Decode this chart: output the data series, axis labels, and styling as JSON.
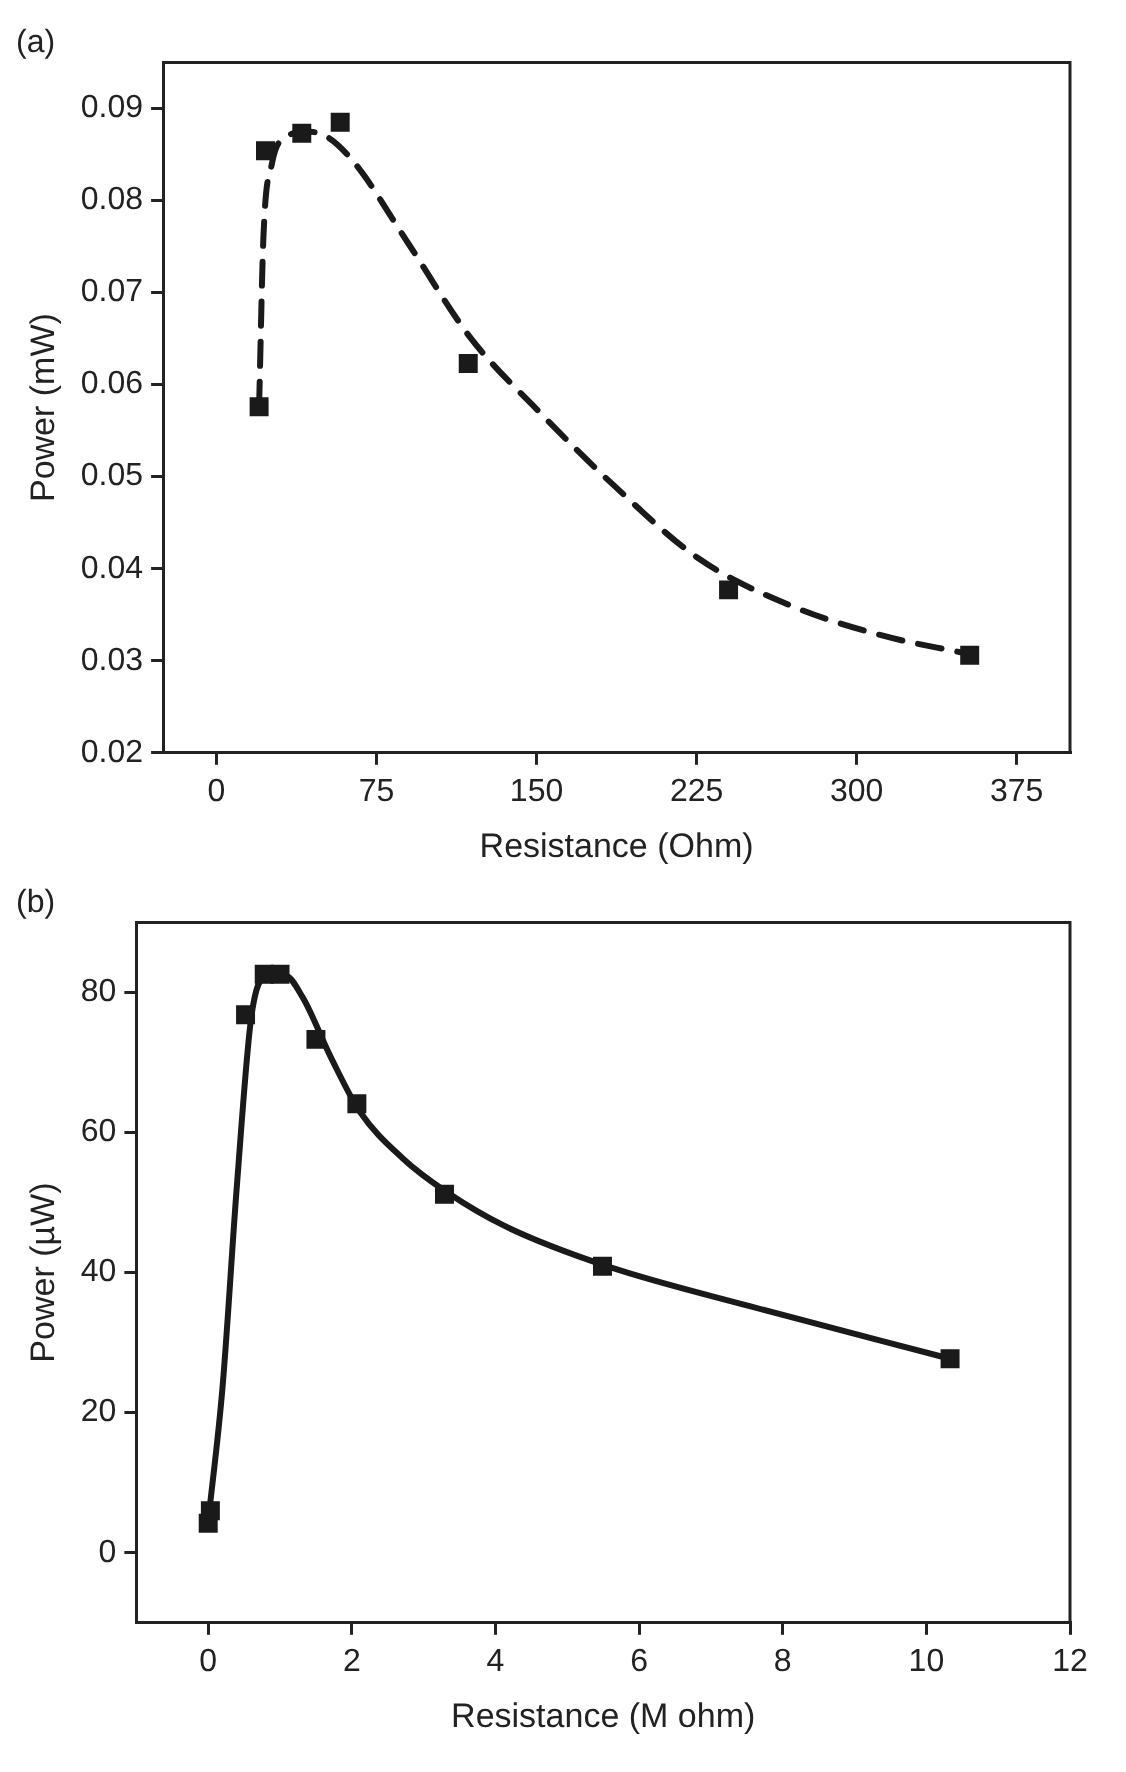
{
  "chart_data": [
    {
      "type": "scatter",
      "title": "(a)",
      "xlabel": "Resistance (Ohm)",
      "ylabel": "Power (mW)",
      "xlim": [
        -25,
        400
      ],
      "ylim": [
        0.02,
        0.095
      ],
      "xticks": [
        0,
        75,
        150,
        225,
        300,
        375
      ],
      "yticks": [
        0.02,
        0.03,
        0.04,
        0.05,
        0.06,
        0.07,
        0.08,
        0.09
      ],
      "grid": false,
      "legend": false,
      "series": [
        {
          "type": "scatter",
          "color": "#1a1a1a",
          "marker": "square",
          "x": [
            20,
            23,
            40,
            58,
            118,
            240,
            353
          ],
          "values": [
            0.0576,
            0.0854,
            0.0873,
            0.0885,
            0.0623,
            0.0377,
            0.0306
          ]
        },
        {
          "type": "line",
          "color": "#1a1a1a",
          "marker": "none",
          "line_style": "dashed",
          "x": [
            20,
            22,
            26,
            33,
            42,
            52,
            65,
            90,
            119,
            151,
            186,
            226,
            269,
            311,
            351
          ],
          "values": [
            0.0577,
            0.0759,
            0.084,
            0.0869,
            0.0875,
            0.0869,
            0.084,
            0.0753,
            0.0651,
            0.0571,
            0.0491,
            0.0411,
            0.036,
            0.0328,
            0.0308
          ]
        }
      ]
    },
    {
      "type": "scatter",
      "title": "(b)",
      "xlabel": "Resistance (M ohm)",
      "ylabel": "Power (µW)",
      "xlim": [
        -1,
        12
      ],
      "ylim": [
        -10,
        90
      ],
      "xticks": [
        0,
        2,
        4,
        6,
        8,
        10,
        12
      ],
      "yticks": [
        0,
        20,
        40,
        60,
        80
      ],
      "grid": false,
      "legend": false,
      "series": [
        {
          "type": "scatter",
          "color": "#1a1a1a",
          "marker": "square",
          "x": [
            0,
            0.03,
            0.52,
            0.78,
            1.0,
            1.5,
            2.07,
            3.29,
            5.49,
            10.33
          ],
          "values": [
            4.2,
            6,
            76.8,
            82.6,
            82.6,
            73.3,
            64.1,
            51.2,
            40.9,
            27.7
          ]
        },
        {
          "type": "line",
          "color": "#1a1a1a",
          "marker": "none",
          "line_style": "solid",
          "x": [
            0,
            0.2,
            0.4,
            0.6,
            0.8,
            1.06,
            1.31,
            1.71,
            2.11,
            2.71,
            3.32,
            4.12,
            5.53,
            7.54,
            10.33
          ],
          "values": [
            4.5,
            23.7,
            52.5,
            76.5,
            82.3,
            82.5,
            79.4,
            70.7,
            63,
            56.3,
            51.5,
            46.7,
            41,
            35.2,
            27.7
          ]
        }
      ]
    }
  ]
}
